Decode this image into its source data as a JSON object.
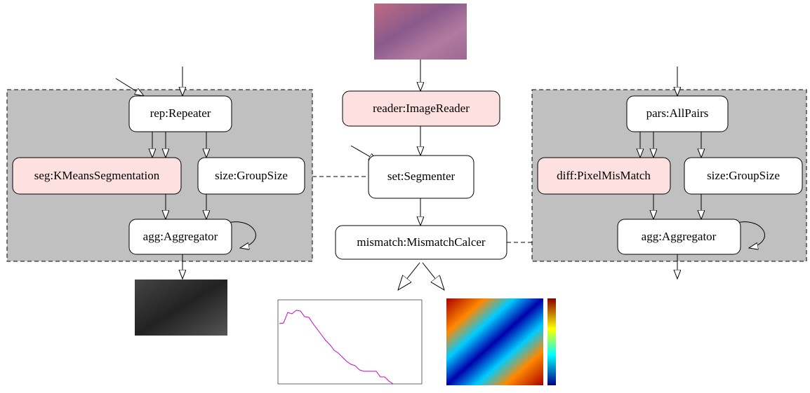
{
  "left_group": {
    "nodes": [
      "rep:Repeater",
      "seg:KMeansSegmentation",
      "size:GroupSize",
      "agg:Aggregator"
    ]
  },
  "center": {
    "nodes": [
      "reader:ImageReader",
      "set:Segmenter",
      "mismatch:MismatchCalcer"
    ]
  },
  "right_group": {
    "nodes": [
      "pars:AllPairs",
      "diff:PixelMisMatch",
      "size:GroupSize",
      "agg:Aggregator"
    ]
  }
}
